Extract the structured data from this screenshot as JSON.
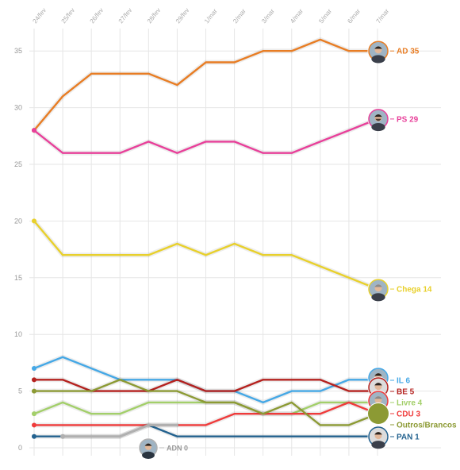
{
  "chart_data": {
    "type": "line",
    "categories": [
      "24/fev",
      "25/fev",
      "26/fev",
      "27/fev",
      "28/fev",
      "29/fev",
      "1/mar",
      "2/mar",
      "3/mar",
      "4/mar",
      "5/mar",
      "6/mar",
      "7/mar"
    ],
    "ylim": [
      0,
      38
    ],
    "y_ticks": [
      0,
      5,
      10,
      15,
      20,
      25,
      30,
      35
    ],
    "grid": true,
    "series": [
      {
        "name": "AD",
        "end_label": "AD 35",
        "color": "#e87d24",
        "values": [
          28,
          31,
          33,
          33,
          33,
          32,
          34,
          34,
          35,
          35,
          36,
          35,
          35
        ],
        "avatar": "portrait-man-dark-hair"
      },
      {
        "name": "PS",
        "end_label": "PS 29",
        "color": "#e8409a",
        "values": [
          28,
          26,
          26,
          26,
          27,
          26,
          27,
          27,
          26,
          26,
          27,
          28,
          29
        ],
        "avatar": "portrait-man-beard"
      },
      {
        "name": "Chega",
        "end_label": "Chega 14",
        "color": "#e8d02c",
        "values": [
          20,
          17,
          17,
          17,
          17,
          18,
          17,
          18,
          17,
          17,
          16,
          15,
          14
        ],
        "avatar": "portrait-man-grey-hair"
      },
      {
        "name": "IL",
        "end_label": "IL 6",
        "color": "#45a8e6",
        "values": [
          7,
          8,
          7,
          6,
          6,
          6,
          5,
          5,
          4,
          5,
          5,
          6,
          6
        ],
        "avatar": "portrait-man-dark-hair"
      },
      {
        "name": "BE",
        "end_label": "BE 5",
        "color": "#b5221f",
        "values": [
          6,
          6,
          5,
          5,
          5,
          6,
          5,
          5,
          6,
          6,
          6,
          5,
          5
        ],
        "avatar": "portrait-woman-dark-hair"
      },
      {
        "name": "Livre",
        "end_label": "Livre 4",
        "color": "#a3cf6a",
        "values": [
          3,
          4,
          3,
          3,
          4,
          4,
          4,
          4,
          3,
          3,
          4,
          4,
          4
        ],
        "avatar": null
      },
      {
        "name": "CDU",
        "end_label": "CDU 3",
        "color": "#ef3b3b",
        "values": [
          2,
          2,
          2,
          2,
          2,
          2,
          2,
          3,
          3,
          3,
          3,
          4,
          3
        ],
        "avatar": "portrait-man-grey-hair"
      },
      {
        "name": "Outros/Brancos",
        "end_label": "Outros/Brancos",
        "color": "#8c9a34",
        "values": [
          5,
          5,
          5,
          6,
          5,
          5,
          4,
          4,
          3,
          4,
          2,
          2,
          3
        ],
        "avatar": "olive-disc"
      },
      {
        "name": "PAN",
        "end_label": "PAN 1",
        "color": "#23628f",
        "values": [
          1,
          1,
          1,
          1,
          2,
          1,
          1,
          1,
          1,
          1,
          1,
          1,
          1
        ],
        "avatar": "portrait-woman-dark-hair"
      },
      {
        "name": "ADN",
        "end_label": "ADN 0",
        "color": "#b0b0b0",
        "values": [
          null,
          1,
          1,
          1,
          2,
          2,
          null,
          null,
          null,
          null,
          null,
          null,
          null
        ],
        "avatar": "portrait-man-suit"
      }
    ]
  }
}
